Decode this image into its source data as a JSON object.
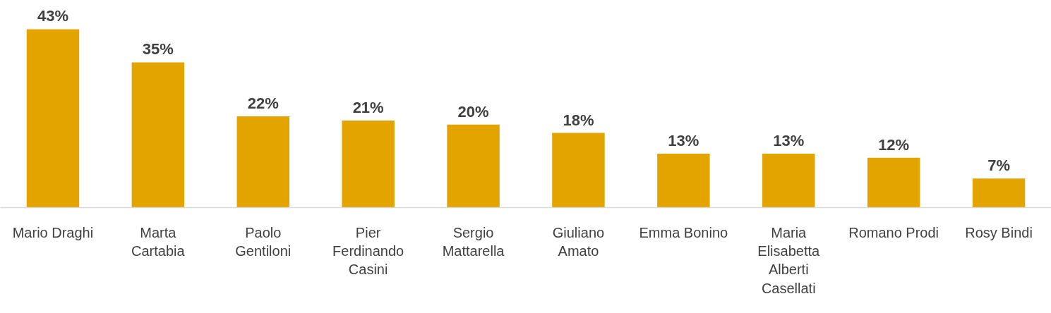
{
  "chart_data": {
    "type": "bar",
    "categories": [
      "Mario Draghi",
      "Marta Cartabia",
      "Paolo Gentiloni",
      "Pier Ferdinando Casini",
      "Sergio Mattarella",
      "Giuliano Amato",
      "Emma Bonino",
      "Maria Elisabetta Alberti Casellati",
      "Romano Prodi",
      "Rosy Bindi"
    ],
    "values": [
      43,
      35,
      22,
      21,
      20,
      18,
      13,
      13,
      12,
      7
    ],
    "value_labels": [
      "43%",
      "35%",
      "22%",
      "21%",
      "20%",
      "18%",
      "13%",
      "13%",
      "12%",
      "7%"
    ],
    "color": "#e3a400",
    "grid": false
  }
}
